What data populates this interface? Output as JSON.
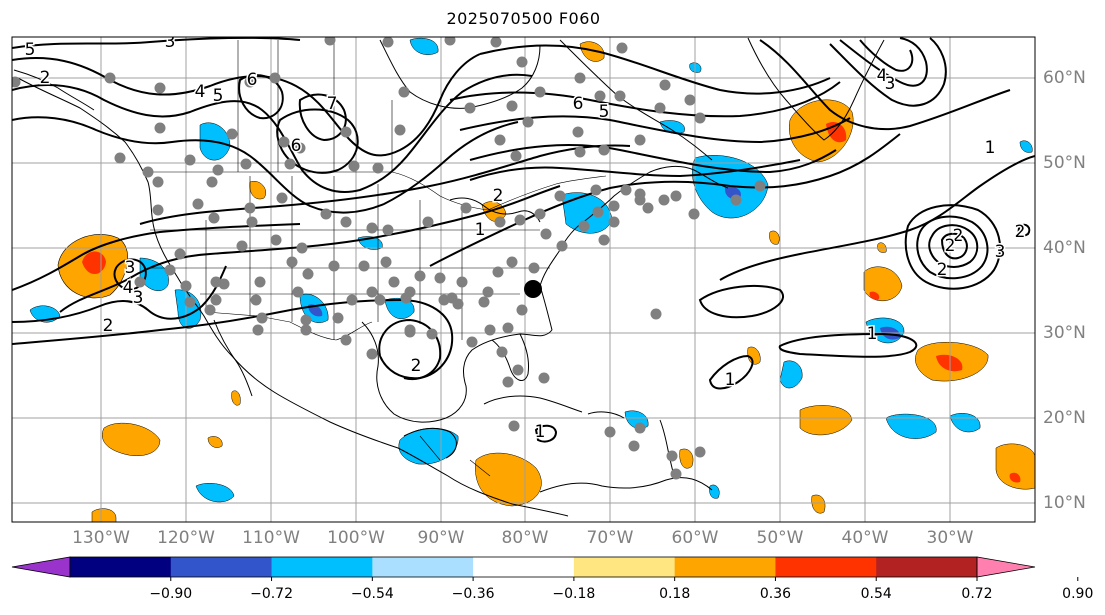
{
  "title": "2025070500 F060",
  "colorbar": {
    "ticks": [
      "−0.90",
      "−0.72",
      "−0.54",
      "−0.36",
      "−0.18",
      "0.18",
      "0.36",
      "0.54",
      "0.72",
      "0.90"
    ],
    "colors": [
      "#9933cc",
      "#000080",
      "#3355cc",
      "#00bfff",
      "#aadfff",
      "#ffffff",
      "#ffe680",
      "#ffa500",
      "#ff3300",
      "#b22222",
      "#ff7fae"
    ]
  },
  "axes": {
    "lon_labels": [
      "130°W",
      "120°W",
      "110°W",
      "100°W",
      "90°W",
      "80°W",
      "70°W",
      "60°W",
      "50°W",
      "40°W",
      "30°W"
    ],
    "lat_labels": [
      "60°N",
      "50°N",
      "40°N",
      "30°N",
      "20°N",
      "10°N"
    ]
  },
  "contour_labels": [
    "5",
    "3",
    "2",
    "4",
    "5",
    "6",
    "7",
    "6",
    "5",
    "3",
    "4",
    "3",
    "2",
    "1",
    "2",
    "6",
    "1",
    "2",
    "4",
    "3",
    "1",
    "2",
    "2",
    "3",
    "2",
    "1",
    "1",
    "2"
  ]
}
